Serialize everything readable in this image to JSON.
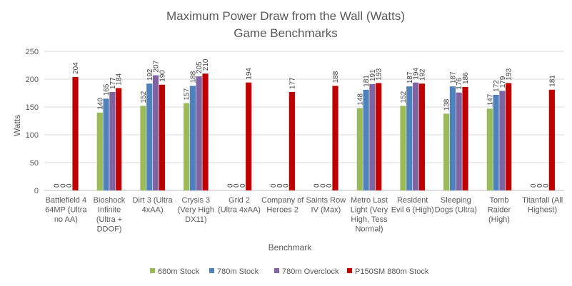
{
  "chart_data": {
    "type": "bar",
    "title": "Maximum Power Draw from the Wall (Watts)",
    "subtitle": "Game Benchmarks",
    "xlabel": "Benchmark",
    "ylabel": "Watts",
    "ylim": [
      0,
      250
    ],
    "yticks": [
      0,
      50,
      100,
      150,
      200,
      250
    ],
    "grid": true,
    "legend_position": "bottom",
    "categories": [
      [
        "Battlefield 4",
        "64MP (Ultra",
        "no AA)"
      ],
      [
        "Bioshock",
        "Infinite",
        "(Ultra +",
        "DDOF)"
      ],
      [
        "Dirt 3 (Ultra",
        "4xAA)"
      ],
      [
        "Crysis  3",
        "(Very High",
        "DX11)"
      ],
      [
        "Grid 2",
        "(Ultra 4xAA)"
      ],
      [
        "Company of",
        "Heroes 2"
      ],
      [
        "Saints Row",
        "IV (Max)"
      ],
      [
        "Metro Last",
        "Light (Very",
        "High, Tess",
        "Normal)"
      ],
      [
        "Resident",
        "Evil 6 (High)"
      ],
      [
        "Sleeping",
        "Dogs (Ultra)"
      ],
      [
        "Tomb",
        "Raider",
        "(High)"
      ],
      [
        "Titanfall (All",
        "Highest)"
      ]
    ],
    "series": [
      {
        "name": "680m Stock",
        "color": "#9BBB59",
        "values": [
          0,
          140,
          152,
          157,
          0,
          0,
          0,
          148,
          152,
          138,
          147,
          0
        ]
      },
      {
        "name": "780m Stock",
        "color": "#4F81BD",
        "values": [
          0,
          165,
          192,
          188,
          0,
          0,
          0,
          181,
          187,
          187,
          172,
          0
        ]
      },
      {
        "name": "780m Overclock",
        "color": "#8064A2",
        "values": [
          0,
          177,
          207,
          205,
          0,
          0,
          0,
          191,
          194,
          176,
          179,
          0
        ]
      },
      {
        "name": "P150SM 880m Stock",
        "color": "#C00000",
        "values": [
          204,
          184,
          190,
          210,
          194,
          177,
          188,
          193,
          192,
          186,
          193,
          181
        ]
      }
    ]
  }
}
